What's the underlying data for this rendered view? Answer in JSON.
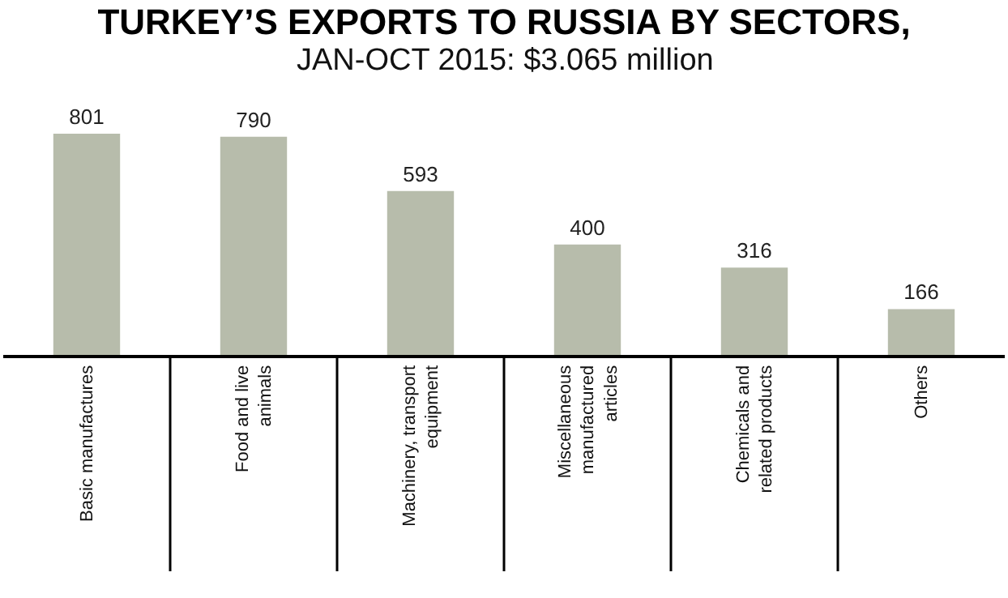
{
  "chart_data": {
    "type": "bar",
    "title": "TURKEY’S EXPORTS TO RUSSIA BY SECTORS,",
    "subtitle": "JAN-OCT 2015: $3.065 million",
    "categories": [
      "Basic manufactures",
      "Food and live animals",
      "Machinery, transport equipment",
      "Miscellaneous manufactured articles",
      "Chemicals and related products",
      "Others"
    ],
    "values": [
      801,
      790,
      593,
      400,
      316,
      166
    ],
    "color": "#b7bcab",
    "data_labels": true,
    "tick_labels": "x"
  }
}
